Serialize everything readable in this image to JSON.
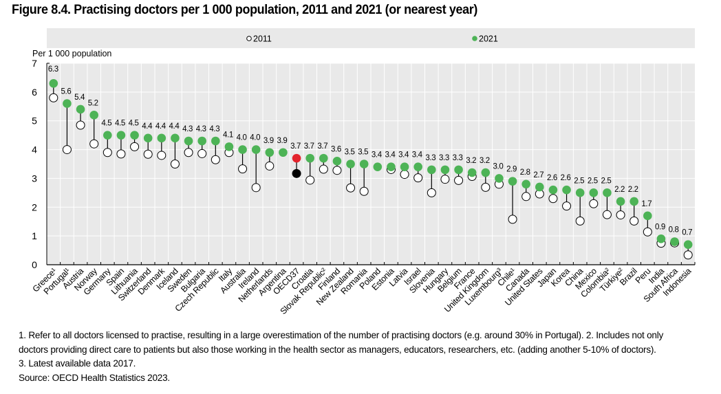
{
  "figure": {
    "title": "Figure 8.4. Practising doctors per 1 000 population, 2011 and 2021 (or nearest year)"
  },
  "chart_data": {
    "type": "dot-plot (dumbbell)",
    "title": "Figure 8.4. Practising doctors per 1 000 population, 2011 and 2021 (or nearest year)",
    "ylabel": "Per 1 000 population",
    "xlabel": "",
    "ylim": [
      0,
      7
    ],
    "yticks": [
      0,
      1,
      2,
      3,
      4,
      5,
      6,
      7
    ],
    "grid": true,
    "legend": {
      "placement": "top",
      "entries": [
        {
          "label": "2011",
          "marker": "hollow-circle"
        },
        {
          "label": "2021",
          "marker": "filled-circle"
        }
      ]
    },
    "colors": {
      "y2021": "#4db356",
      "y2011_fill": "#ffffff",
      "y2011_stroke": "#000000",
      "oecd_2021": "#e3232c",
      "oecd_2011": "#000000",
      "plot_bg": "#e9e9e9",
      "legend_bg": "#e9e9e9",
      "grid": "#ffffff"
    },
    "categories": [
      "Greece¹",
      "Portugal¹",
      "Austria",
      "Norway",
      "Germany",
      "Spain",
      "Lithuania",
      "Switzerland",
      "Denmark",
      "Iceland",
      "Sweden",
      "Bulgaria",
      "Czech Republic",
      "Italy",
      "Australia",
      "Ireland",
      "Netherlands",
      "Argentina",
      "OECD37",
      "Croatia",
      "Slovak Republic²",
      "Finland",
      "New Zealand",
      "Romania",
      "Poland",
      "Estonia",
      "Latvia",
      "Israel",
      "Slovenia",
      "Hungary",
      "Belgium",
      "France",
      "United Kingdom",
      "Luxembourg³",
      "Chile¹",
      "Canada",
      "United States",
      "Japan",
      "Korea",
      "China",
      "Mexico",
      "Colombia²",
      "Türkiye²",
      "Brazil",
      "Peru",
      "India",
      "South Africa",
      "Indonesia"
    ],
    "highlight": "OECD37",
    "series": [
      {
        "name": "2021",
        "values": [
          6.3,
          5.6,
          5.4,
          5.2,
          4.5,
          4.5,
          4.5,
          4.4,
          4.4,
          4.4,
          4.3,
          4.3,
          4.3,
          4.1,
          4.0,
          4.0,
          3.9,
          3.9,
          3.7,
          3.7,
          3.7,
          3.6,
          3.5,
          3.5,
          3.4,
          3.4,
          3.4,
          3.4,
          3.3,
          3.3,
          3.3,
          3.2,
          3.2,
          3.0,
          2.9,
          2.8,
          2.7,
          2.6,
          2.6,
          2.5,
          2.5,
          2.5,
          2.2,
          2.2,
          1.7,
          0.9,
          0.8,
          0.7
        ],
        "labels": [
          "6.3",
          "5.6",
          "5.4",
          "5.2",
          "4.5",
          "4.5",
          "4.5",
          "4.4",
          "4.4",
          "4.4",
          "4.3",
          "4.3",
          "4.3",
          "4.1",
          "4.0",
          "4.0",
          "3.9",
          "3.9",
          "3.7",
          "3.7",
          "3.7",
          "3.6",
          "3.5",
          "3.5",
          "3.4",
          "3.4",
          "3.4",
          "3.4",
          "3.3",
          "3.3",
          "3.3",
          "3.2",
          "3.2",
          "3.0",
          "2.9",
          "2.8",
          "2.7",
          "2.6",
          "2.6",
          "2.5",
          "2.5",
          "2.5",
          "2.2",
          "2.2",
          "1.7",
          "0.9",
          "0.8",
          "0.7"
        ]
      },
      {
        "name": "2011",
        "values": [
          5.8,
          4.0,
          4.85,
          4.2,
          3.9,
          3.85,
          4.1,
          3.84,
          3.8,
          3.5,
          3.9,
          3.86,
          3.65,
          3.9,
          3.33,
          2.68,
          3.43,
          null,
          3.17,
          2.94,
          3.32,
          3.28,
          2.67,
          2.55,
          null,
          3.31,
          3.14,
          3.02,
          2.5,
          2.97,
          2.93,
          3.07,
          2.69,
          2.8,
          1.58,
          2.37,
          2.46,
          2.3,
          2.04,
          1.52,
          2.12,
          1.74,
          1.73,
          1.52,
          1.14,
          0.75,
          0.76,
          0.34
        ]
      }
    ]
  },
  "notes": {
    "line1": "1. Refer to all doctors licensed to practise, resulting in a large overestimation of the number of practising doctors (e.g. around 30% in Portugal). 2. Includes not only",
    "line2": "doctors providing direct care to patients but also those working in the health sector as managers, educators, researchers, etc. (adding another 5-10% of doctors).",
    "line3": "3. Latest available data 2017.",
    "source": "Source: OECD Health Statistics 2023."
  }
}
